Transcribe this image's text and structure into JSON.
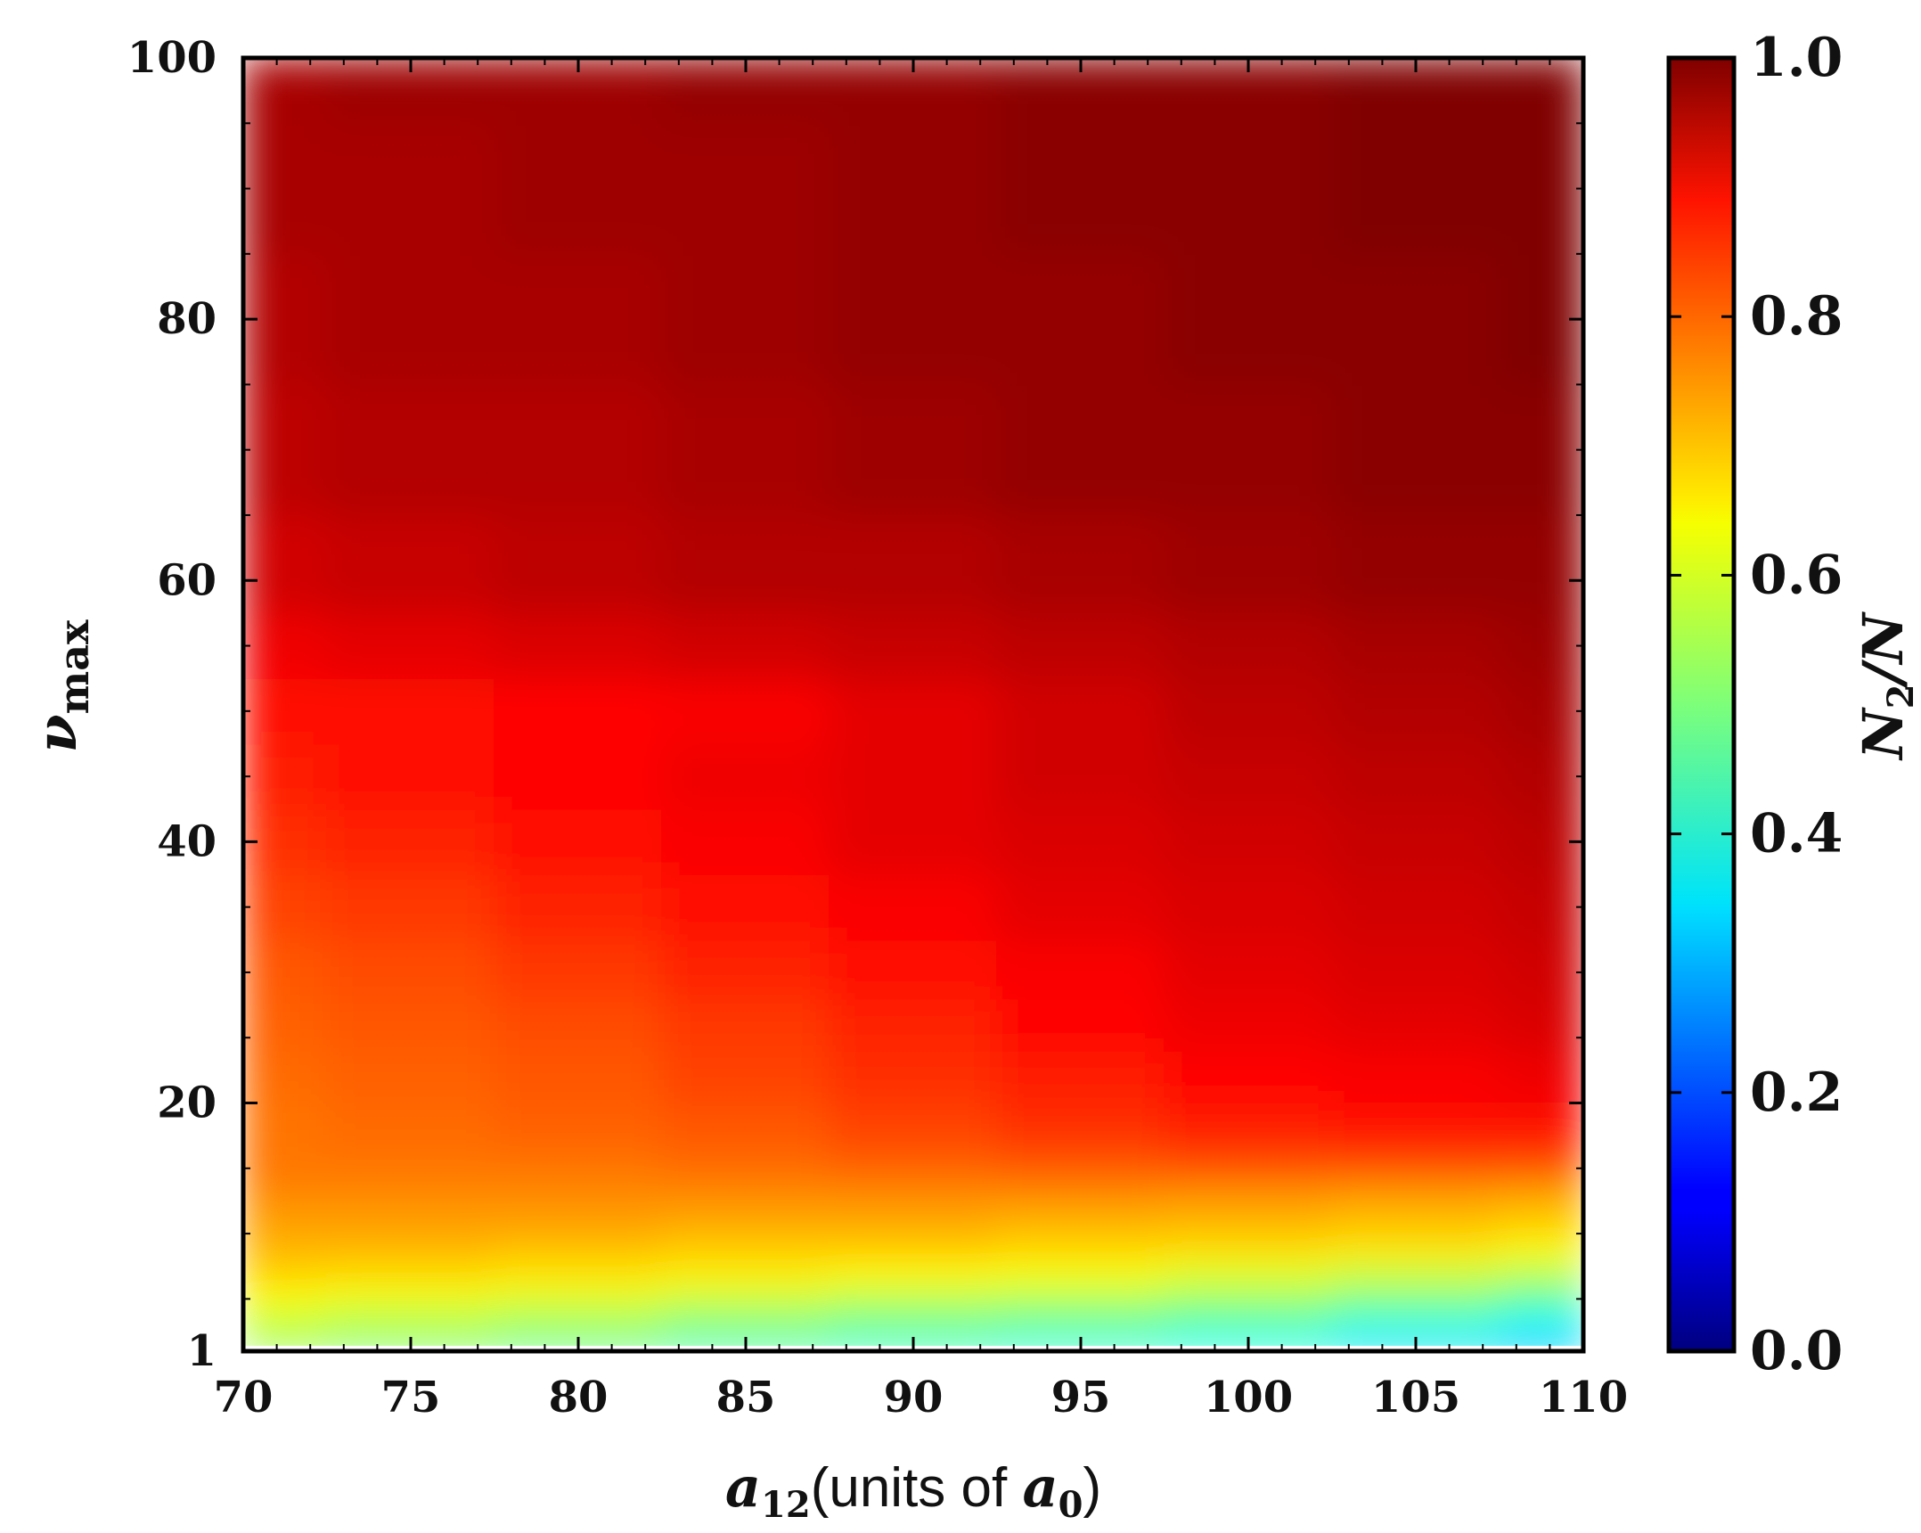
{
  "chart_data": {
    "type": "heatmap",
    "colormap": "jet",
    "x": {
      "label_main": "a",
      "label_sub": "12",
      "label_rest": "(units of ",
      "label_unit_main": "a",
      "label_unit_sub": "0",
      "label_close": ")",
      "ticks": [
        "70",
        "75",
        "80",
        "85",
        "90",
        "95",
        "100",
        "105",
        "110"
      ],
      "tick_values": [
        70,
        75,
        80,
        85,
        90,
        95,
        100,
        105,
        110
      ],
      "range": [
        70,
        110
      ]
    },
    "y": {
      "label_main": "ν",
      "label_sub": "max",
      "ticks": [
        "1",
        "20",
        "40",
        "60",
        "80",
        "100"
      ],
      "tick_values": [
        1,
        20,
        40,
        60,
        80,
        100
      ],
      "range": [
        1,
        100
      ]
    },
    "colorbar": {
      "label_main": "N",
      "label_sub": "2",
      "label_rest": "/N",
      "ticks": [
        "0.0",
        "0.2",
        "0.4",
        "0.6",
        "0.8",
        "1.0"
      ],
      "tick_values": [
        0.0,
        0.2,
        0.4,
        0.6,
        0.8,
        1.0
      ],
      "range": [
        0,
        1
      ]
    },
    "grid_x": [
      70,
      75,
      80,
      85,
      90,
      95,
      100,
      105,
      110
    ],
    "grid_y": [
      1,
      3,
      5,
      7,
      9,
      11,
      13,
      15,
      18,
      22,
      26,
      30,
      35,
      40,
      45,
      50,
      55,
      60,
      70,
      80,
      90,
      100
    ],
    "z": [
      [
        0.52,
        0.5,
        0.47,
        0.44,
        0.42,
        0.4,
        0.38,
        0.34,
        0.3
      ],
      [
        0.56,
        0.54,
        0.52,
        0.49,
        0.47,
        0.46,
        0.44,
        0.4,
        0.37
      ],
      [
        0.62,
        0.61,
        0.6,
        0.58,
        0.56,
        0.55,
        0.53,
        0.5,
        0.46
      ],
      [
        0.67,
        0.66,
        0.65,
        0.64,
        0.63,
        0.62,
        0.6,
        0.58,
        0.56
      ],
      [
        0.7,
        0.7,
        0.69,
        0.68,
        0.68,
        0.67,
        0.66,
        0.65,
        0.63
      ],
      [
        0.72,
        0.72,
        0.72,
        0.71,
        0.71,
        0.7,
        0.7,
        0.69,
        0.68
      ],
      [
        0.74,
        0.74,
        0.74,
        0.74,
        0.74,
        0.74,
        0.73,
        0.72,
        0.71
      ],
      [
        0.76,
        0.76,
        0.76,
        0.77,
        0.78,
        0.79,
        0.8,
        0.8,
        0.8
      ],
      [
        0.76,
        0.77,
        0.78,
        0.79,
        0.81,
        0.83,
        0.85,
        0.86,
        0.86
      ],
      [
        0.77,
        0.78,
        0.79,
        0.81,
        0.83,
        0.85,
        0.87,
        0.88,
        0.89
      ],
      [
        0.78,
        0.79,
        0.8,
        0.82,
        0.84,
        0.87,
        0.89,
        0.9,
        0.91
      ],
      [
        0.79,
        0.8,
        0.82,
        0.84,
        0.86,
        0.88,
        0.9,
        0.91,
        0.92
      ],
      [
        0.81,
        0.82,
        0.84,
        0.86,
        0.88,
        0.9,
        0.91,
        0.92,
        0.93
      ],
      [
        0.83,
        0.84,
        0.86,
        0.88,
        0.9,
        0.91,
        0.92,
        0.93,
        0.94
      ],
      [
        0.85,
        0.86,
        0.87,
        0.89,
        0.9,
        0.92,
        0.93,
        0.94,
        0.95
      ],
      [
        0.86,
        0.86,
        0.87,
        0.88,
        0.9,
        0.92,
        0.94,
        0.95,
        0.96
      ],
      [
        0.89,
        0.9,
        0.91,
        0.92,
        0.93,
        0.94,
        0.95,
        0.96,
        0.97
      ],
      [
        0.92,
        0.93,
        0.94,
        0.95,
        0.95,
        0.96,
        0.97,
        0.98,
        0.98
      ],
      [
        0.94,
        0.95,
        0.95,
        0.96,
        0.97,
        0.98,
        0.98,
        0.99,
        0.99
      ],
      [
        0.95,
        0.96,
        0.96,
        0.97,
        0.98,
        0.98,
        0.99,
        0.99,
        1.0
      ],
      [
        0.96,
        0.96,
        0.97,
        0.97,
        0.98,
        0.99,
        0.99,
        1.0,
        1.0
      ],
      [
        0.96,
        0.97,
        0.97,
        0.98,
        0.98,
        0.99,
        0.99,
        1.0,
        1.0
      ]
    ]
  }
}
